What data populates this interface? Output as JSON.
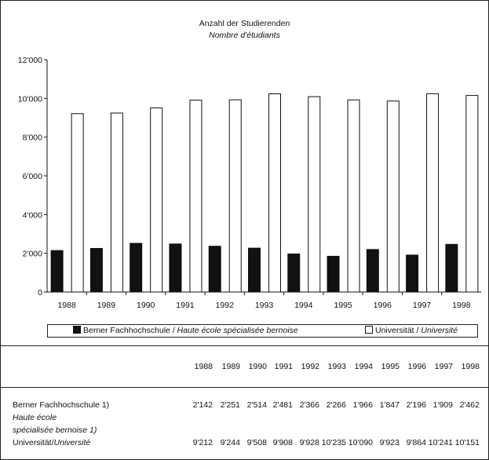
{
  "chart_data": {
    "type": "bar",
    "title": "Anzahl der Studierenden",
    "subtitle": "Nombre d'étudiants",
    "categories": [
      "1988",
      "1989",
      "1990",
      "1991",
      "1992",
      "1993",
      "1994",
      "1995",
      "1996",
      "1997",
      "1998"
    ],
    "ylim": [
      0,
      12000
    ],
    "yticks": [
      "0",
      "2'000",
      "4'000",
      "6'000",
      "8'000",
      "10'000",
      "12'000"
    ],
    "grid": false,
    "legend_position": "bottom",
    "series": [
      {
        "name": "Berner Fachhochschule / Haute école spécialisée bernoise",
        "name_de": "Berner Fachhochschule / ",
        "name_fr": "Haute école spécialisée bernoise",
        "color": "#111111",
        "values": [
          2142,
          2251,
          2514,
          2481,
          2366,
          2266,
          1966,
          1847,
          2196,
          1909,
          2462
        ]
      },
      {
        "name": "Universität / Université",
        "name_de": "Universität / ",
        "name_fr": "Université",
        "color": "#ffffff",
        "values": [
          9212,
          9244,
          9508,
          9908,
          9928,
          10235,
          10090,
          9923,
          9864,
          10241,
          10151
        ]
      }
    ]
  },
  "table": {
    "years": [
      "1988",
      "1989",
      "1990",
      "1991",
      "1992",
      "1993",
      "1994",
      "1995",
      "1996",
      "1997",
      "1998"
    ],
    "rows": [
      {
        "label": "Berner Fachhochschule 1)",
        "values": [
          "2'142",
          "2'251",
          "2'514",
          "2'481",
          "2'366",
          "2'266",
          "1'966",
          "1'847",
          "2'196",
          "1'909",
          "2'462"
        ]
      },
      {
        "label": "Universität/Université",
        "label_de": "Universität/",
        "label_fr": "Université",
        "values": [
          "9'212",
          "9'244",
          "9'508",
          "9'908",
          "9'928",
          "10'235",
          "10'090",
          "9'923",
          "9'864",
          "10'241",
          "10'151"
        ]
      }
    ],
    "row1_sublabel_line1": "Haute école",
    "row1_sublabel_line2": "spécialisée bernoise 1)"
  }
}
